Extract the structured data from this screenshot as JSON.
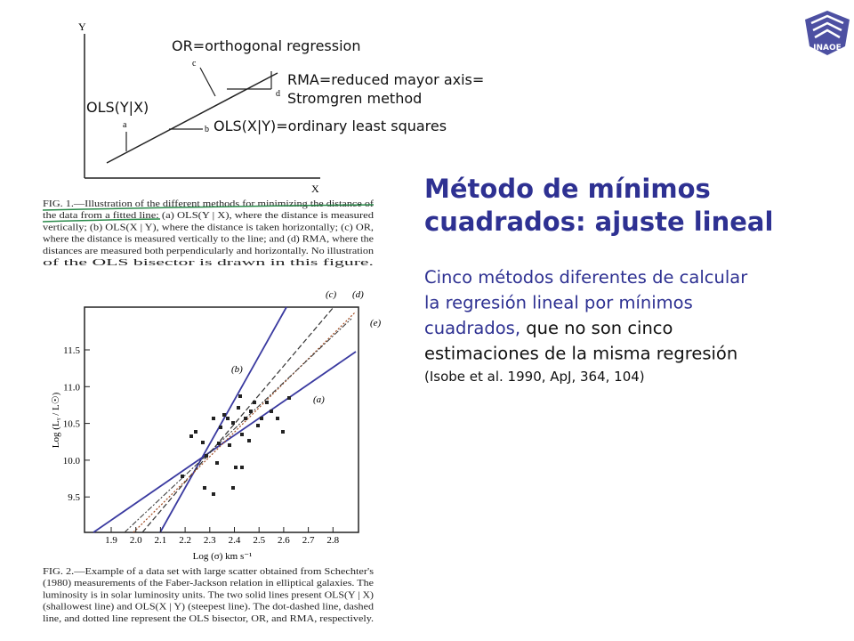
{
  "logo": {
    "text": "INAOE"
  },
  "figure1": {
    "axis_y": "Y",
    "axis_x": "X",
    "point_labels": [
      "a",
      "b",
      "c",
      "d"
    ],
    "annotations": {
      "or": "OR=orthogonal regression",
      "rma": [
        "RMA=reduced mayor axis=",
        "Stromgren method"
      ],
      "ols_yx": "OLS(Y|X)",
      "ols_xy": "OLS(X|Y)=ordinary least squares"
    },
    "caption": [
      "FIG. 1.—Illustration of the different methods for minimizing the distance of",
      "the data from a fitted line: (a) OLS(Y | X), where the distance is measured",
      "vertically; (b) OLS(X | Y), where the distance is taken horizontally; (c) OR,",
      "where the distance is measured vertically to the line; and (d) RMA, where the",
      "distances are measured both perpendicularly and horizontally. No illustration",
      "of the OLS bisector is drawn in this figure."
    ]
  },
  "figure2": {
    "yticks": [
      "11.5",
      "11.0",
      "10.5",
      "10.0",
      "9.5"
    ],
    "xticks": [
      "1.9",
      "2.0",
      "2.1",
      "2.2",
      "2.3",
      "2.4",
      "2.5",
      "2.6",
      "2.7",
      "2.8"
    ],
    "ylabel": "Log (Lᵧ / L☉)",
    "xlabel": "Log (σ) km s⁻¹",
    "line_labels": [
      "(a)",
      "(b)",
      "(c)",
      "(d)",
      "(e)"
    ],
    "caption": [
      "FIG. 2.—Example of a data set with large scatter obtained from Schechter's",
      "(1980) measurements of the Faber-Jackson relation in elliptical galaxies. The",
      "luminosity is in solar luminosity units. The two solid lines present OLS(Y | X)",
      "(shallowest line) and OLS(X | Y) (steepest line). The dot-dashed line, dashed",
      "line, and dotted line represent the OLS bisector, OR, and RMA, respectively."
    ]
  },
  "slide": {
    "title": [
      "Método de mínimos",
      "cuadrados: ajuste lineal"
    ],
    "title_color": "#2e3192",
    "body": [
      [
        {
          "text": "Cinco métodos diferentes de calcular",
          "color": "#2e3192"
        }
      ],
      [
        {
          "text": "la regresión lineal por mínimos",
          "color": "#2e3192"
        }
      ],
      [
        {
          "text": "cuadrados,",
          "color": "#2e3192"
        },
        {
          "text": " que no son cinco",
          "color": "#111111"
        }
      ],
      [
        {
          "text": "estimaciones de la misma regresión",
          "color": "#111111"
        }
      ]
    ],
    "citation": "(Isobe et al. 1990, ApJ, 364, 104)"
  }
}
